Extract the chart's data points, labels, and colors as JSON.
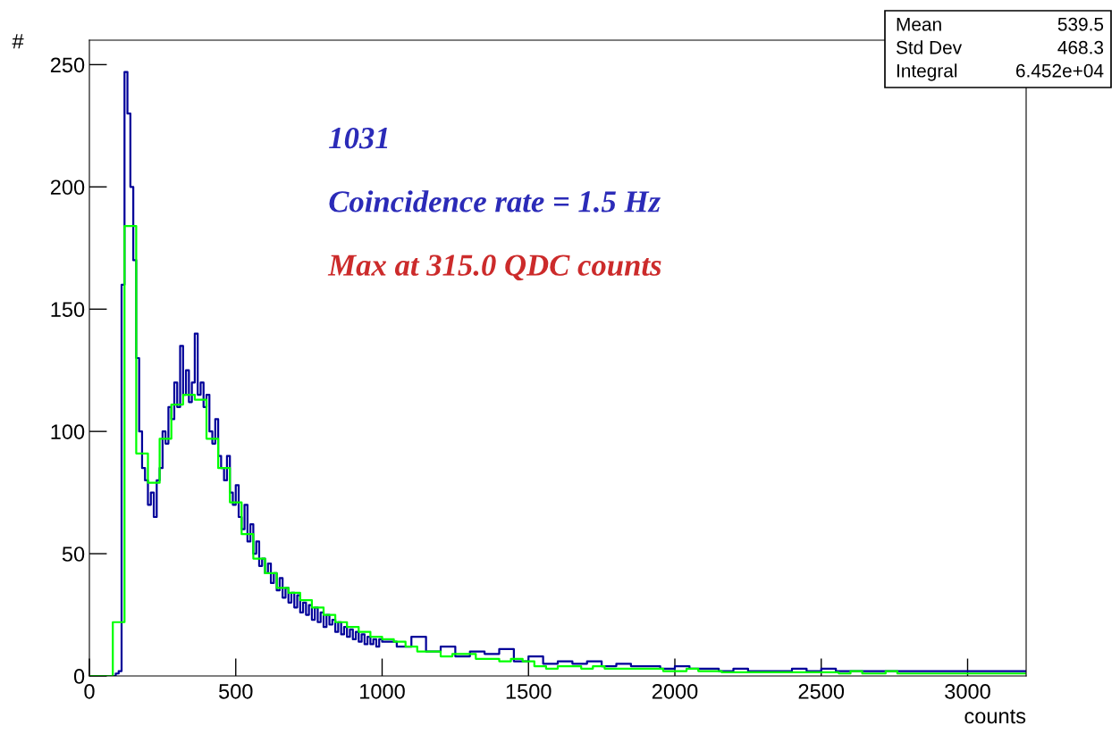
{
  "chart_data": {
    "type": "step",
    "xlabel": "counts",
    "ylabel": "#",
    "xlim": [
      0,
      3200
    ],
    "ylim": [
      0,
      260
    ],
    "xticks": [
      0,
      500,
      1000,
      1500,
      2000,
      2500,
      3000
    ],
    "yticks": [
      0,
      50,
      100,
      150,
      200,
      250
    ],
    "grid": false,
    "annotations": [
      "1031",
      "Coincidence rate = 1.5 Hz",
      "Max at 315.0 QDC counts",
      "Mean",
      "539.5",
      "Std Dev",
      "468.3",
      "Integral",
      "6.452e+04"
    ],
    "series": [
      {
        "color": "#000099",
        "x": [
          80,
          90,
          100,
          110,
          120,
          130,
          140,
          150,
          160,
          170,
          180,
          190,
          200,
          210,
          220,
          230,
          240,
          250,
          260,
          270,
          280,
          290,
          300,
          310,
          320,
          330,
          340,
          350,
          360,
          370,
          380,
          390,
          400,
          410,
          420,
          430,
          440,
          450,
          460,
          470,
          480,
          490,
          500,
          510,
          520,
          530,
          540,
          550,
          560,
          570,
          580,
          590,
          600,
          610,
          620,
          630,
          640,
          650,
          660,
          670,
          680,
          690,
          700,
          710,
          720,
          730,
          740,
          750,
          760,
          770,
          780,
          790,
          800,
          810,
          820,
          830,
          840,
          850,
          860,
          870,
          880,
          890,
          900,
          910,
          920,
          930,
          940,
          950,
          960,
          970,
          980,
          990,
          1000,
          1050,
          1100,
          1150,
          1200,
          1250,
          1300,
          1350,
          1400,
          1450,
          1500,
          1550,
          1600,
          1650,
          1700,
          1750,
          1800,
          1850,
          1900,
          1950,
          2000,
          2050,
          2100,
          2150,
          2200,
          2250,
          2300,
          2350,
          2400,
          2450,
          2500,
          2550,
          2600,
          2650,
          2700,
          2750,
          2800,
          2850,
          2900,
          2950,
          3000,
          3050,
          3100,
          3150,
          3200
        ],
        "values": [
          0,
          1,
          2,
          160,
          247,
          230,
          200,
          170,
          130,
          100,
          85,
          80,
          70,
          75,
          65,
          80,
          85,
          100,
          95,
          110,
          105,
          120,
          110,
          135,
          115,
          125,
          112,
          120,
          140,
          115,
          120,
          110,
          115,
          100,
          95,
          105,
          90,
          85,
          80,
          90,
          75,
          70,
          78,
          65,
          60,
          70,
          55,
          62,
          50,
          55,
          45,
          48,
          42,
          46,
          38,
          42,
          35,
          40,
          32,
          36,
          30,
          34,
          28,
          33,
          26,
          30,
          25,
          29,
          23,
          28,
          22,
          26,
          20,
          25,
          21,
          23,
          18,
          22,
          17,
          20,
          16,
          19,
          15,
          18,
          14,
          17,
          13,
          16,
          13,
          15,
          12,
          15,
          14,
          12,
          16,
          10,
          12,
          8,
          10,
          9,
          11,
          6,
          8,
          5,
          6,
          5,
          6,
          4,
          5,
          4,
          4,
          3,
          4,
          3,
          3,
          2,
          3,
          2,
          2,
          2,
          3,
          2,
          3,
          2,
          2,
          2,
          2,
          2,
          2,
          2,
          2,
          2,
          2,
          2,
          2,
          2,
          2
        ]
      },
      {
        "color": "#00ff00",
        "x": [
          0,
          40,
          80,
          120,
          160,
          200,
          240,
          280,
          320,
          360,
          400,
          440,
          480,
          520,
          560,
          600,
          640,
          680,
          720,
          760,
          800,
          840,
          880,
          920,
          960,
          1000,
          1040,
          1080,
          1120,
          1160,
          1200,
          1240,
          1280,
          1320,
          1360,
          1400,
          1440,
          1480,
          1520,
          1560,
          1600,
          1640,
          1680,
          1720,
          1760,
          1800,
          1840,
          1880,
          1920,
          1960,
          2000,
          2040,
          2080,
          2120,
          2160,
          2200,
          2240,
          2280,
          2320,
          2360,
          2400,
          2440,
          2480,
          2520,
          2560,
          2600,
          2640,
          2680,
          2720,
          2760,
          2800,
          2840,
          2880,
          2920,
          2960,
          3000,
          3040,
          3080,
          3120,
          3160,
          3200
        ],
        "values": [
          0,
          0,
          22,
          184,
          91,
          79,
          97,
          111,
          115,
          113,
          97,
          85,
          71,
          58,
          48,
          42,
          36,
          34,
          31,
          28,
          25,
          22,
          20,
          18,
          16,
          15,
          14,
          12,
          10,
          10,
          8,
          9,
          9,
          7,
          7,
          6,
          7,
          6,
          4,
          3,
          4,
          4,
          3,
          4,
          3,
          3,
          3,
          3,
          3,
          2,
          2,
          3,
          2,
          2,
          1.5,
          1.5,
          1.5,
          1.5,
          1.5,
          1.5,
          1.5,
          1.5,
          1.5,
          1.5,
          1,
          2,
          1,
          1,
          2,
          1,
          1,
          1,
          1,
          1,
          1,
          1,
          1,
          1,
          1,
          1,
          1
        ]
      }
    ]
  }
}
